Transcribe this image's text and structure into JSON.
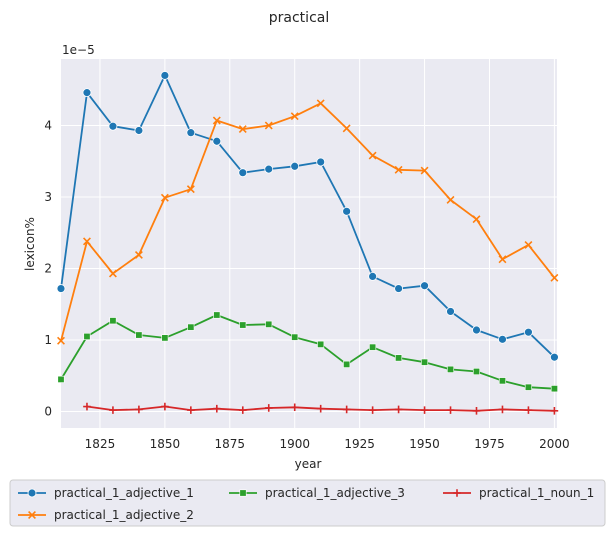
{
  "chart_data": {
    "type": "line",
    "title": "practical",
    "xlabel": "year",
    "ylabel": "lexicon%",
    "y_scale_label": "1e−5",
    "xlim": [
      1810,
      2001
    ],
    "ylim": [
      -0.23,
      4.93
    ],
    "x_ticks": [
      1825,
      1850,
      1875,
      1900,
      1925,
      1950,
      1975,
      2000
    ],
    "x_tick_labels": [
      "1825",
      "1850",
      "1875",
      "1900",
      "1925",
      "1950",
      "1975",
      "2000"
    ],
    "y_ticks": [
      0,
      1,
      2,
      3,
      4
    ],
    "y_tick_labels": [
      "0",
      "1",
      "2",
      "3",
      "4"
    ],
    "grid": true,
    "legend_position": "bottom",
    "series": [
      {
        "name": "practical_1_adjective_1",
        "color": "#1f77b4",
        "marker": "circle",
        "x": [
          1810,
          1820,
          1830,
          1840,
          1850,
          1860,
          1870,
          1880,
          1890,
          1900,
          1910,
          1920,
          1930,
          1940,
          1950,
          1960,
          1970,
          1980,
          1990,
          2000
        ],
        "values": [
          1.72,
          4.46,
          3.99,
          3.93,
          4.7,
          3.9,
          3.78,
          3.34,
          3.39,
          3.43,
          3.49,
          2.8,
          1.89,
          1.72,
          1.76,
          1.4,
          1.14,
          1.01,
          1.11,
          0.76
        ]
      },
      {
        "name": "practical_1_adjective_2",
        "color": "#ff7f0e",
        "marker": "x",
        "x": [
          1810,
          1820,
          1830,
          1840,
          1850,
          1860,
          1870,
          1880,
          1890,
          1900,
          1910,
          1920,
          1930,
          1940,
          1950,
          1960,
          1970,
          1980,
          1990,
          2000
        ],
        "values": [
          0.99,
          2.38,
          1.93,
          2.19,
          2.99,
          3.11,
          4.07,
          3.95,
          4.0,
          4.13,
          4.31,
          3.96,
          3.58,
          3.38,
          3.37,
          2.96,
          2.69,
          2.13,
          2.33,
          1.87
        ]
      },
      {
        "name": "practical_1_adjective_3",
        "color": "#2ca02c",
        "marker": "square",
        "x": [
          1810,
          1820,
          1830,
          1840,
          1850,
          1860,
          1870,
          1880,
          1890,
          1900,
          1910,
          1920,
          1930,
          1940,
          1950,
          1960,
          1970,
          1980,
          1990,
          2000
        ],
        "values": [
          0.45,
          1.05,
          1.27,
          1.07,
          1.03,
          1.18,
          1.35,
          1.21,
          1.22,
          1.04,
          0.94,
          0.66,
          0.9,
          0.75,
          0.69,
          0.59,
          0.56,
          0.43,
          0.34,
          0.32
        ]
      },
      {
        "name": "practical_1_noun_1",
        "color": "#d62728",
        "marker": "plus",
        "x": [
          1820,
          1830,
          1840,
          1850,
          1860,
          1870,
          1880,
          1890,
          1900,
          1910,
          1920,
          1930,
          1940,
          1950,
          1960,
          1970,
          1980,
          1990,
          2000
        ],
        "values": [
          0.07,
          0.02,
          0.03,
          0.07,
          0.02,
          0.04,
          0.02,
          0.05,
          0.06,
          0.04,
          0.03,
          0.02,
          0.03,
          0.02,
          0.02,
          0.01,
          0.03,
          0.02,
          0.01
        ]
      }
    ]
  }
}
